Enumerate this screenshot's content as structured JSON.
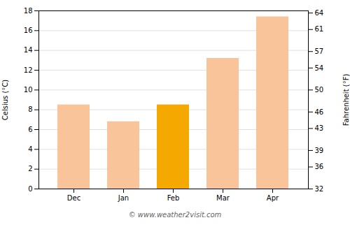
{
  "chart_data": {
    "type": "bar",
    "categories": [
      "Dec",
      "Jan",
      "Feb",
      "Mar",
      "Apr"
    ],
    "values": [
      8.5,
      6.8,
      8.5,
      13.2,
      17.4
    ],
    "colors": [
      "#f9c49a",
      "#f9c49a",
      "#f5a800",
      "#f9c49a",
      "#f9c49a"
    ],
    "ylim": [
      0,
      18
    ],
    "yticks": [
      0,
      2,
      4,
      6,
      8,
      10,
      12,
      14,
      16,
      18
    ],
    "ylabel": "Celsius (°C)",
    "y2lim": [
      32,
      64.4
    ],
    "y2ticks": [
      32,
      36,
      39,
      43,
      46,
      50,
      54,
      57,
      61,
      64
    ],
    "y2label": "Fahrenheit (°F)",
    "grid": true,
    "footer": "© www.weather2visit.com"
  }
}
